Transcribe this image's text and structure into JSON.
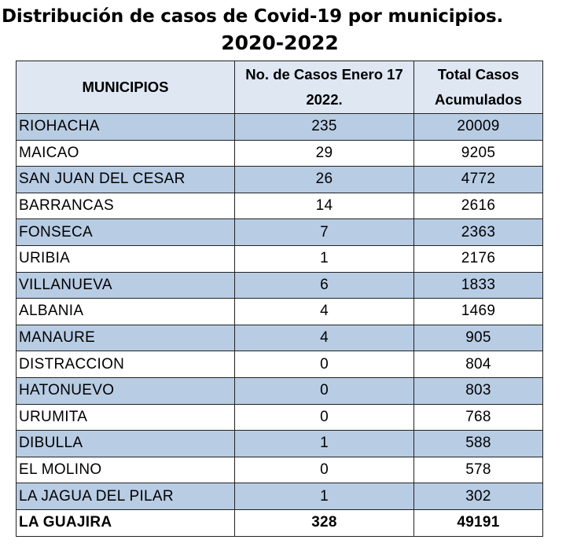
{
  "title": {
    "line1": "Distribución de casos de Covid-19 por municipios.",
    "line2": "2020-2022"
  },
  "table": {
    "headers": {
      "municipio": "MUNICIPIOS",
      "casos_enero": "No. de Casos Enero 17 2022.",
      "total": "Total Casos Acumulados"
    },
    "rows": [
      {
        "municipio": "RIOHACHA",
        "casos_enero": "235",
        "total": "20009"
      },
      {
        "municipio": "MAICAO",
        "casos_enero": "29",
        "total": "9205"
      },
      {
        "municipio": "SAN JUAN DEL CESAR",
        "casos_enero": "26",
        "total": "4772"
      },
      {
        "municipio": "BARRANCAS",
        "casos_enero": "14",
        "total": "2616"
      },
      {
        "municipio": "FONSECA",
        "casos_enero": "7",
        "total": "2363"
      },
      {
        "municipio": "URIBIA",
        "casos_enero": "1",
        "total": "2176"
      },
      {
        "municipio": "VILLANUEVA",
        "casos_enero": "6",
        "total": "1833"
      },
      {
        "municipio": "ALBANIA",
        "casos_enero": "4",
        "total": "1469"
      },
      {
        "municipio": "MANAURE",
        "casos_enero": "4",
        "total": "905"
      },
      {
        "municipio": "DISTRACCION",
        "casos_enero": "0",
        "total": "804"
      },
      {
        "municipio": "HATONUEVO",
        "casos_enero": "0",
        "total": "803"
      },
      {
        "municipio": "URUMITA",
        "casos_enero": "0",
        "total": "768"
      },
      {
        "municipio": "DIBULLA",
        "casos_enero": "1",
        "total": "588"
      },
      {
        "municipio": "EL MOLINO",
        "casos_enero": "0",
        "total": "578"
      },
      {
        "municipio": "LA JAGUA DEL PILAR",
        "casos_enero": "1",
        "total": "302"
      }
    ],
    "total_row": {
      "municipio": "LA GUAJIRA",
      "casos_enero": "328",
      "total": "49191"
    }
  },
  "colors": {
    "shaded_row": "#b8cce4",
    "header_bg": "#dfe7f3",
    "border": "#222222"
  }
}
